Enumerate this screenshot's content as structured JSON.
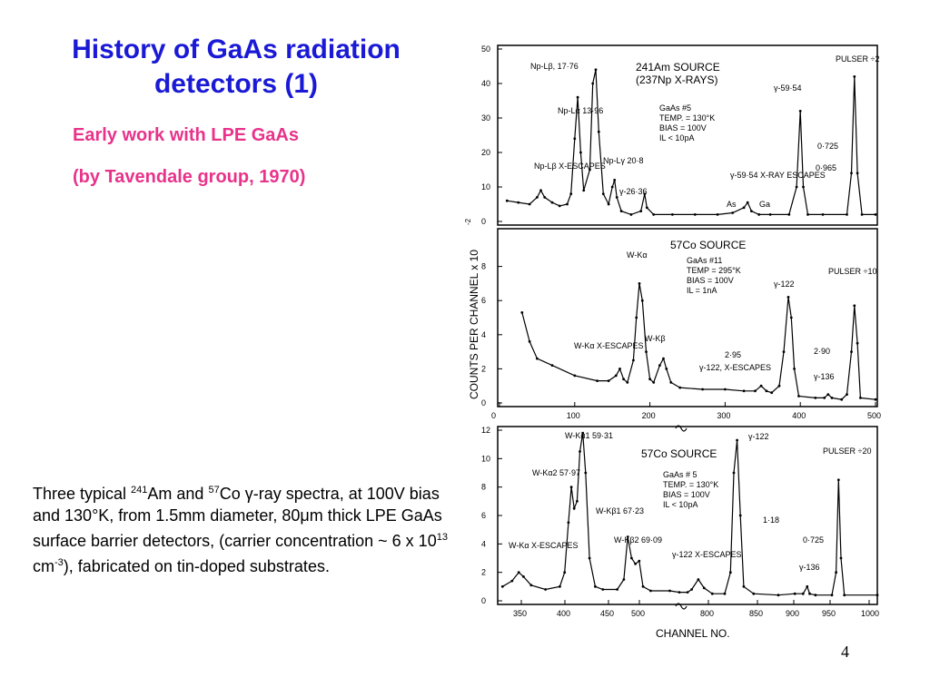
{
  "slide": {
    "title": "History of GaAs radiation detectors (1)",
    "subtitle1": "Early work with LPE GaAs",
    "subtitle2": "(by Tavendale group, 1970)",
    "caption": {
      "t1": "Three typical ",
      "s1": "241",
      "t2": "Am and ",
      "s2": "57",
      "t3": "Co ",
      "gamma": "γ",
      "t4": "-ray spectra, at 100V bias and 130",
      "deg": "°",
      "t5": "K,  from 1.5mm diameter, 80",
      "mu": "μ",
      "t6": "m thick LPE GaAs surface barrier detectors, (carrier concentration ~ 6 x 10",
      "s3": "13",
      "t7": " cm",
      "s4": "-3",
      "t8": "), fabricated on tin-doped substrates."
    },
    "page_number": "4"
  },
  "figure": {
    "y_axis_label": "COUNTS PER CHANNEL  x 10",
    "y_axis_exp": "-2",
    "x_axis_label": "CHANNEL  NO."
  },
  "chart_data": [
    {
      "type": "line",
      "xlim": [
        0,
        500
      ],
      "ylim": [
        0,
        50
      ],
      "y_ticks": [
        "0",
        "10",
        "20",
        "30",
        "40",
        "50"
      ],
      "source_lines": [
        "241Am SOURCE",
        "(237Np X-RAYS)"
      ],
      "info_lines": [
        "GaAs #5",
        "TEMP. = 130°K",
        "BIAS = 100V",
        "IL < 10pA"
      ],
      "annotations": [
        "Np-Lβ, 17·76",
        "Np-Lα 13·96",
        "Np-Lβ X-ESCAPES",
        "Np-Lγ 20·8",
        "γ-26·36",
        "γ-59·54 X-RAY ESCAPES",
        "As",
        "Ga",
        "γ-59·54",
        "0·725",
        "0·965",
        "PULSER ÷2"
      ],
      "points": [
        [
          10,
          6
        ],
        [
          25,
          5.5
        ],
        [
          40,
          5
        ],
        [
          50,
          7
        ],
        [
          55,
          9
        ],
        [
          60,
          7
        ],
        [
          70,
          5.5
        ],
        [
          80,
          4.5
        ],
        [
          90,
          5
        ],
        [
          95,
          8
        ],
        [
          100,
          24
        ],
        [
          104,
          36
        ],
        [
          108,
          20
        ],
        [
          112,
          9
        ],
        [
          120,
          15
        ],
        [
          124,
          40
        ],
        [
          128,
          44
        ],
        [
          132,
          26
        ],
        [
          138,
          8
        ],
        [
          145,
          5
        ],
        [
          150,
          10
        ],
        [
          153,
          12
        ],
        [
          156,
          7
        ],
        [
          162,
          3
        ],
        [
          175,
          2
        ],
        [
          188,
          3
        ],
        [
          193,
          8
        ],
        [
          196,
          4
        ],
        [
          205,
          2
        ],
        [
          230,
          2
        ],
        [
          260,
          2
        ],
        [
          290,
          2
        ],
        [
          310,
          2.5
        ],
        [
          325,
          4
        ],
        [
          330,
          5.5
        ],
        [
          335,
          3
        ],
        [
          345,
          2
        ],
        [
          360,
          2
        ],
        [
          385,
          2
        ],
        [
          395,
          10
        ],
        [
          400,
          32
        ],
        [
          404,
          10
        ],
        [
          410,
          2
        ],
        [
          430,
          2
        ],
        [
          462,
          2
        ],
        [
          468,
          14
        ],
        [
          472,
          42
        ],
        [
          476,
          14
        ],
        [
          482,
          2
        ],
        [
          500,
          2
        ]
      ]
    },
    {
      "type": "line",
      "xlim": [
        0,
        500
      ],
      "ylim": [
        0,
        10
      ],
      "y_ticks": [
        "0",
        "2",
        "4",
        "6",
        "8"
      ],
      "x_ticks": [
        "0",
        "100",
        "200",
        "300",
        "400",
        "500"
      ],
      "source_lines": [
        "57Co SOURCE"
      ],
      "info_lines": [
        "GaAs #11",
        "TEMP = 295°K",
        "BIAS = 100V",
        "IL = 1nA"
      ],
      "annotations": [
        "W-Kα",
        "W-Kα X-ESCAPES",
        "W-Kβ",
        "γ-122",
        "γ-122, X-ESCAPES",
        "2·95",
        "2·90",
        "γ-136",
        "PULSER ÷10"
      ],
      "points": [
        [
          30,
          5.3
        ],
        [
          40,
          3.6
        ],
        [
          50,
          2.6
        ],
        [
          70,
          2.2
        ],
        [
          100,
          1.6
        ],
        [
          130,
          1.3
        ],
        [
          145,
          1.3
        ],
        [
          155,
          1.6
        ],
        [
          160,
          2
        ],
        [
          165,
          1.4
        ],
        [
          170,
          1.2
        ],
        [
          178,
          2.5
        ],
        [
          182,
          5
        ],
        [
          186,
          7
        ],
        [
          190,
          6
        ],
        [
          195,
          3
        ],
        [
          200,
          1.4
        ],
        [
          205,
          1.2
        ],
        [
          213,
          2.2
        ],
        [
          218,
          2.6
        ],
        [
          222,
          2
        ],
        [
          228,
          1.2
        ],
        [
          240,
          0.9
        ],
        [
          270,
          0.8
        ],
        [
          300,
          0.8
        ],
        [
          325,
          0.7
        ],
        [
          340,
          0.7
        ],
        [
          348,
          1
        ],
        [
          355,
          0.7
        ],
        [
          362,
          0.6
        ],
        [
          372,
          1
        ],
        [
          378,
          3
        ],
        [
          384,
          6.2
        ],
        [
          388,
          5
        ],
        [
          392,
          2
        ],
        [
          398,
          0.4
        ],
        [
          420,
          0.3
        ],
        [
          432,
          0.3
        ],
        [
          437,
          0.5
        ],
        [
          442,
          0.3
        ],
        [
          455,
          0.2
        ],
        [
          462,
          0.5
        ],
        [
          468,
          3
        ],
        [
          472,
          5.7
        ],
        [
          476,
          3.5
        ],
        [
          480,
          0.3
        ],
        [
          500,
          0.2
        ]
      ]
    },
    {
      "type": "line",
      "xlim": [
        330,
        1000
      ],
      "ylim": [
        0,
        12
      ],
      "y_ticks": [
        "0",
        "2",
        "4",
        "6",
        "8",
        "10",
        "12"
      ],
      "x_ticks": [
        "350",
        "400",
        "450",
        "500",
        "800",
        "850",
        "900",
        "950",
        "1000"
      ],
      "source_lines": [
        "57Co SOURCE"
      ],
      "info_lines": [
        "GaAs # 5",
        "TEMP. = 130°K",
        "BIAS = 100V",
        "IL < 10pA"
      ],
      "annotations": [
        "W-Kα1 59·31",
        "W-Kα2 57·97",
        "W-Kα X-ESCAPES",
        "W-Kβ1 67·23",
        "W-Kβ2 69·09",
        "γ-122",
        "γ-122 X-ESCAPES",
        "1·18",
        "0·725",
        "γ-136",
        "PULSER ÷20"
      ],
      "points": [
        [
          335,
          1
        ],
        [
          345,
          1.4
        ],
        [
          352,
          2
        ],
        [
          357,
          1.7
        ],
        [
          365,
          1.1
        ],
        [
          380,
          0.8
        ],
        [
          395,
          1
        ],
        [
          400,
          2
        ],
        [
          404,
          5.5
        ],
        [
          407,
          8
        ],
        [
          410,
          6.5
        ],
        [
          413,
          7
        ],
        [
          416,
          10.5
        ],
        [
          419,
          11.8
        ],
        [
          422,
          9
        ],
        [
          426,
          3
        ],
        [
          432,
          1
        ],
        [
          440,
          0.8
        ],
        [
          455,
          0.8
        ],
        [
          462,
          1.5
        ],
        [
          466,
          4.5
        ],
        [
          470,
          3
        ],
        [
          474,
          2.6
        ],
        [
          478,
          2.8
        ],
        [
          482,
          1
        ],
        [
          490,
          0.7
        ],
        [
          510,
          0.7
        ],
        [
          520,
          0.6
        ],
        [
          770,
          0.6
        ],
        [
          775,
          0.8
        ],
        [
          783,
          1.5
        ],
        [
          790,
          0.9
        ],
        [
          800,
          0.5
        ],
        [
          815,
          0.5
        ],
        [
          822,
          2
        ],
        [
          826,
          9
        ],
        [
          830,
          11.3
        ],
        [
          834,
          6
        ],
        [
          838,
          1
        ],
        [
          850,
          0.5
        ],
        [
          880,
          0.4
        ],
        [
          900,
          0.5
        ],
        [
          910,
          0.5
        ],
        [
          915,
          1
        ],
        [
          918,
          0.5
        ],
        [
          925,
          0.4
        ],
        [
          945,
          0.4
        ],
        [
          950,
          2
        ],
        [
          953,
          8.5
        ],
        [
          956,
          3
        ],
        [
          960,
          0.4
        ],
        [
          1000,
          0.4
        ]
      ]
    }
  ]
}
